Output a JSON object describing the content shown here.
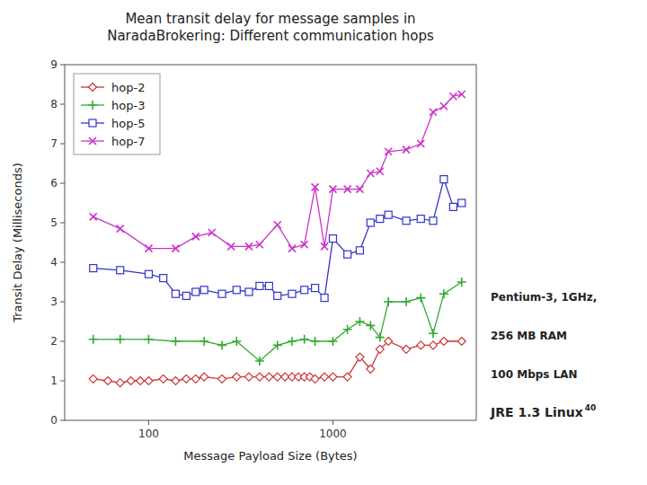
{
  "chart_data": {
    "type": "line",
    "title": "Mean transit delay for message samples in\nNaradaBrokering: Different communication hops",
    "x_label": "Message Payload Size (Bytes)",
    "y_label": "Transit Delay (Milliseconds)",
    "annotations": [
      "Pentium-3, 1GHz,",
      "256 MB RAM",
      "100 Mbps LAN",
      "JRE 1.3 Linux",
      "40"
    ],
    "log": "x",
    "grid": false,
    "legend": "upper left",
    "xlim": [
      35,
      6000
    ],
    "xticks": [
      100,
      1000
    ],
    "ylim": [
      0,
      9
    ],
    "yticks": [
      0,
      1,
      2,
      3,
      4,
      5,
      6,
      7,
      8,
      9
    ],
    "series": [
      {
        "name": "hop-2",
        "color": "#cc3333",
        "marker": "diamond",
        "x": [
          50,
          60,
          70,
          80,
          90,
          100,
          120,
          140,
          160,
          180,
          200,
          250,
          300,
          350,
          400,
          450,
          500,
          550,
          600,
          650,
          700,
          750,
          800,
          900,
          1000,
          1200,
          1400,
          1600,
          1800,
          2000,
          2500,
          3000,
          3500,
          4000,
          5000
        ],
        "values": [
          1.05,
          1.0,
          0.95,
          1.0,
          1.0,
          1.0,
          1.05,
          1.0,
          1.05,
          1.05,
          1.1,
          1.05,
          1.1,
          1.1,
          1.1,
          1.1,
          1.1,
          1.1,
          1.1,
          1.1,
          1.1,
          1.1,
          1.05,
          1.1,
          1.1,
          1.1,
          1.6,
          1.3,
          1.8,
          2.0,
          1.8,
          1.9,
          1.9,
          2.0,
          2.0
        ]
      },
      {
        "name": "hop-3",
        "color": "#33aa33",
        "marker": "plus",
        "x": [
          50,
          70,
          100,
          140,
          200,
          250,
          300,
          400,
          500,
          600,
          700,
          800,
          1000,
          1200,
          1400,
          1600,
          1800,
          2000,
          2500,
          3000,
          3500,
          4000,
          5000
        ],
        "values": [
          2.05,
          2.05,
          2.05,
          2.0,
          2.0,
          1.9,
          2.0,
          1.5,
          1.9,
          2.0,
          2.05,
          2.0,
          2.0,
          2.3,
          2.5,
          2.4,
          2.1,
          3.0,
          3.0,
          3.1,
          2.2,
          3.2,
          3.5
        ]
      },
      {
        "name": "hop-5",
        "color": "#3333cc",
        "marker": "square",
        "x": [
          50,
          70,
          100,
          120,
          140,
          160,
          180,
          200,
          250,
          300,
          350,
          400,
          450,
          500,
          600,
          700,
          800,
          900,
          1000,
          1200,
          1400,
          1600,
          1800,
          2000,
          2500,
          3000,
          3500,
          4000,
          4500,
          5000
        ],
        "values": [
          3.85,
          3.8,
          3.7,
          3.6,
          3.2,
          3.15,
          3.25,
          3.3,
          3.2,
          3.3,
          3.25,
          3.4,
          3.4,
          3.15,
          3.2,
          3.3,
          3.35,
          3.1,
          4.6,
          4.2,
          4.3,
          5.0,
          5.1,
          5.2,
          5.05,
          5.1,
          5.05,
          6.1,
          5.4,
          5.5
        ]
      },
      {
        "name": "hop-7",
        "color": "#cc33cc",
        "marker": "x",
        "x": [
          50,
          70,
          100,
          140,
          180,
          220,
          280,
          350,
          400,
          500,
          600,
          700,
          800,
          900,
          1000,
          1200,
          1400,
          1600,
          1800,
          2000,
          2500,
          3000,
          3500,
          4000,
          4500,
          5000
        ],
        "values": [
          5.15,
          4.85,
          4.35,
          4.35,
          4.65,
          4.75,
          4.4,
          4.4,
          4.45,
          4.95,
          4.35,
          4.45,
          5.9,
          4.4,
          5.85,
          5.85,
          5.85,
          6.25,
          6.3,
          6.8,
          6.85,
          7.0,
          7.8,
          7.95,
          8.2,
          8.25
        ]
      }
    ]
  }
}
